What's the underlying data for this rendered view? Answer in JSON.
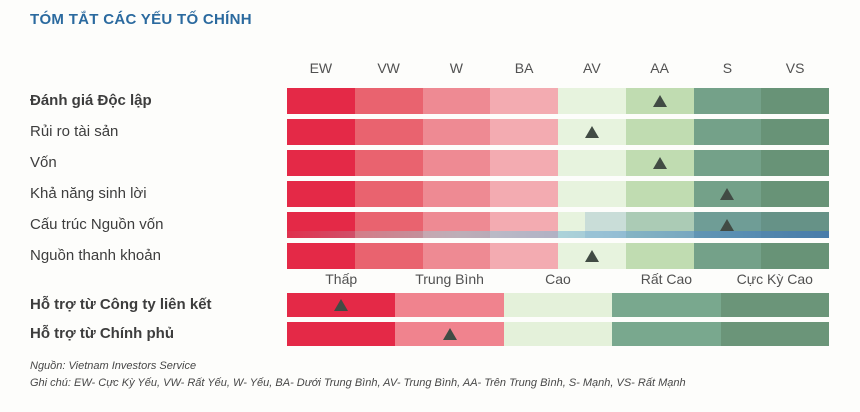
{
  "title": "TÓM TẮT CÁC YẾU TỐ CHÍNH",
  "chart_data": {
    "type": "heatmap",
    "title": "TÓM TẮT CÁC YẾU TỐ CHÍNH",
    "scale_categories": [
      "EW",
      "VW",
      "W",
      "BA",
      "AV",
      "AA",
      "S",
      "VS"
    ],
    "scale_colors": [
      "#e42947",
      "#e9636f",
      "#ee8a93",
      "#f3abb1",
      "#e7f3de",
      "#c0dcb1",
      "#74a189",
      "#689377"
    ],
    "factor_rows": [
      {
        "label": "Đánh giá Độc lập",
        "bold": true,
        "rating": "AA"
      },
      {
        "label": "Rủi ro tài sản",
        "bold": false,
        "rating": "AV"
      },
      {
        "label": "Vốn",
        "bold": false,
        "rating": "AA"
      },
      {
        "label": "Khả năng sinh lời",
        "bold": false,
        "rating": "S"
      },
      {
        "label": "Cấu trúc Nguồn vốn",
        "bold": false,
        "rating": "S",
        "scan_artifact": true
      },
      {
        "label": "Nguồn thanh khoản",
        "bold": false,
        "rating": "AV"
      }
    ],
    "support_categories": [
      "Thấp",
      "Trung Bình",
      "Cao",
      "Rất Cao",
      "Cực Kỳ Cao"
    ],
    "support_colors": [
      "#e42947",
      "#f0838e",
      "#e4f1da",
      "#79a88e",
      "#6b9579"
    ],
    "support_rows": [
      {
        "label": "Hỗ trợ từ Công ty liên kết",
        "bold": true,
        "rating": "Thấp"
      },
      {
        "label": "Hỗ trợ từ Chính phủ",
        "bold": true,
        "rating": "Trung Bình"
      }
    ],
    "marker_color": "#414b44",
    "legend_position": "bottom"
  },
  "footer": {
    "source": "Nguồn: Vietnam Investors Service",
    "legend": "Ghi chú: EW- Cực Kỳ Yếu, VW- Rất Yếu, W- Yếu, BA- Dưới Trung Bình, AV- Trung Bình, AA- Trên Trung Bình, S- Mạnh, VS- Rất Mạnh"
  },
  "colors": {
    "title": "#2b6a9f",
    "header_text": "#515151",
    "label_text": "#3d3d3d",
    "footnote_text": "#474747"
  }
}
